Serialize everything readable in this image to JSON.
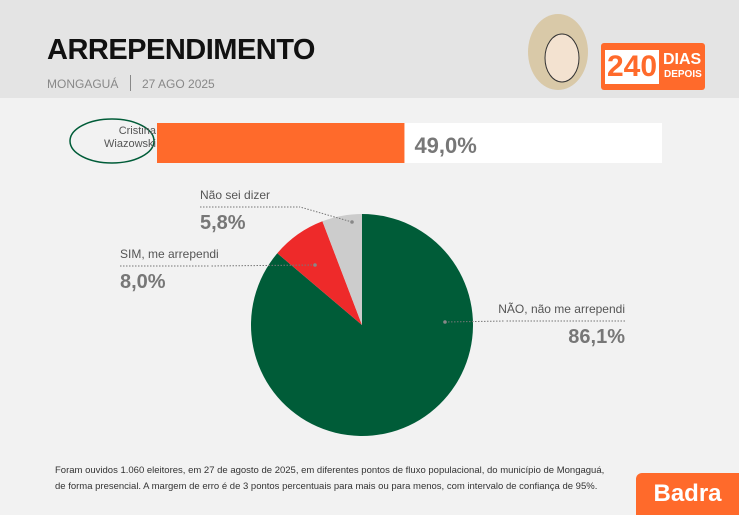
{
  "header": {
    "title": "ARREPENDIMENTO",
    "location": "MONGAGUÁ",
    "date": "27 AGO 2025",
    "badge_number": "240",
    "badge_word": "DIAS",
    "badge_sub": "DEPOIS"
  },
  "chart_data": [
    {
      "type": "bar",
      "categories": [
        "Cristina Wiazowski"
      ],
      "values": [
        49.0
      ],
      "value_labels": [
        "49,0%"
      ],
      "color": "#ff6a2b",
      "xlim": [
        0,
        100
      ]
    },
    {
      "type": "pie",
      "categories": [
        "NÃO, não me arrependi",
        "SIM, me arrependi",
        "Não sei dizer"
      ],
      "values": [
        86.1,
        8.0,
        5.8
      ],
      "value_labels": [
        "86,1%",
        "8,0%",
        "5,8%"
      ],
      "colors": [
        "#005c38",
        "#ee2a2a",
        "#cccccc"
      ]
    }
  ],
  "footnote": [
    "Foram ouvidos 1.060 eleitores, em 27 de agosto de 2025, em diferentes pontos de fluxo populacional, do município de Mongaguá,",
    "de forma presencial. A margem de erro é de 3 pontos percentuais para mais ou para menos, com intervalo de confiança de 95%."
  ],
  "brand": "Badra"
}
